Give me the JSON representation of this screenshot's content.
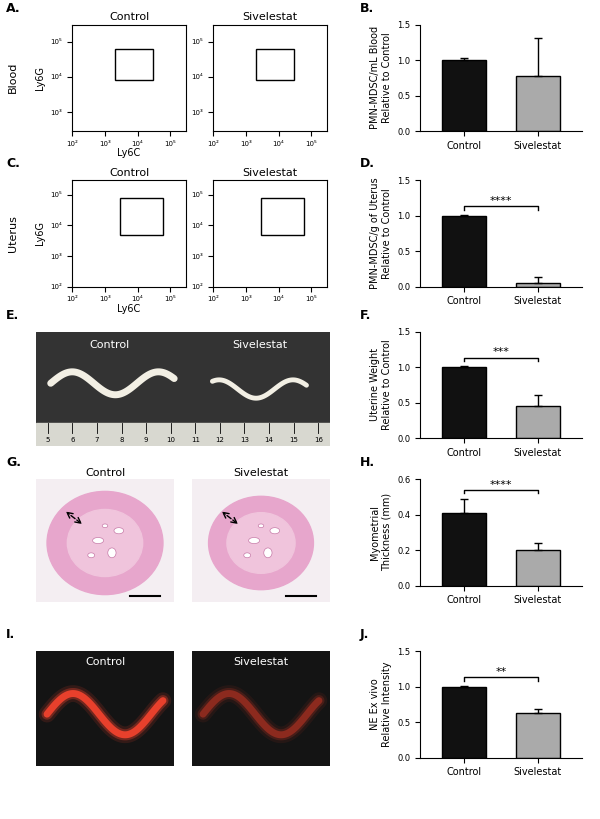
{
  "chart_data": [
    {
      "panel": "A.",
      "type": "flow_cytometry",
      "row_label": "Blood",
      "xlabel": "Ly6C",
      "ylabel": "Ly6G",
      "titles": [
        "Control",
        "Sivelestat"
      ],
      "log": true,
      "xlim": [
        100,
        300000
      ],
      "ylim": [
        300,
        300000
      ],
      "xticks": [
        {
          "value": 100,
          "label": "10²"
        },
        {
          "value": 1000,
          "label": "10³"
        },
        {
          "value": 10000,
          "label": "10⁴"
        },
        {
          "value": 100000,
          "label": "10⁵"
        }
      ],
      "yticks": [
        {
          "value": 1000,
          "label": "10³"
        },
        {
          "value": 10000,
          "label": "10⁴"
        },
        {
          "value": 100000,
          "label": "10⁵"
        }
      ],
      "gates": [
        {
          "x": [
            2000,
            30000
          ],
          "y": [
            8000,
            60000
          ]
        },
        {
          "x": [
            2000,
            30000
          ],
          "y": [
            8000,
            60000
          ]
        }
      ]
    },
    {
      "panel": "B.",
      "type": "bar",
      "ylabel": "PMN-MDSC/mL Blood\nRelative to Control",
      "categories": [
        "Control",
        "Sivelestat"
      ],
      "values": [
        1.0,
        0.78
      ],
      "errors": [
        0.03,
        0.53
      ],
      "colors": [
        "#111111",
        "#aaaaaa"
      ],
      "ylim": [
        0.0,
        1.5
      ],
      "yticks": [
        0.0,
        0.5,
        1.0,
        1.5
      ]
    },
    {
      "panel": "C.",
      "type": "flow_cytometry",
      "row_label": "Uterus",
      "xlabel": "Ly6C",
      "ylabel": "Ly6G",
      "titles": [
        "Control",
        "Sivelestat"
      ],
      "log": true,
      "xlim": [
        100,
        300000
      ],
      "ylim": [
        100,
        300000
      ],
      "xticks": [
        {
          "value": 100,
          "label": "10²"
        },
        {
          "value": 1000,
          "label": "10³"
        },
        {
          "value": 10000,
          "label": "10⁴"
        },
        {
          "value": 100000,
          "label": "10⁵"
        }
      ],
      "yticks": [
        {
          "value": 100,
          "label": "10²"
        },
        {
          "value": 1000,
          "label": "10³"
        },
        {
          "value": 10000,
          "label": "10⁴"
        },
        {
          "value": 100000,
          "label": "10⁵"
        }
      ],
      "gates": [
        {
          "x": [
            3000,
            60000
          ],
          "y": [
            5000,
            80000
          ]
        },
        {
          "x": [
            3000,
            60000
          ],
          "y": [
            5000,
            80000
          ]
        }
      ]
    },
    {
      "panel": "D.",
      "type": "bar",
      "ylabel": "PMN-MDSC/g of Uterus\nRelative to Control",
      "categories": [
        "Control",
        "Sivelestat"
      ],
      "values": [
        1.0,
        0.05
      ],
      "errors": [
        0.01,
        0.08
      ],
      "colors": [
        "#111111",
        "#aaaaaa"
      ],
      "ylim": [
        0.0,
        1.5
      ],
      "yticks": [
        0.0,
        0.5,
        1.0,
        1.5
      ],
      "significance": "****"
    },
    {
      "panel": "F.",
      "type": "bar",
      "ylabel": "Uterine Weight\nRelative to Control",
      "categories": [
        "Control",
        "Sivelestat"
      ],
      "values": [
        1.0,
        0.45
      ],
      "errors": [
        0.01,
        0.16
      ],
      "colors": [
        "#111111",
        "#aaaaaa"
      ],
      "ylim": [
        0.0,
        1.5
      ],
      "yticks": [
        0.0,
        0.5,
        1.0,
        1.5
      ],
      "significance": "***"
    },
    {
      "panel": "H.",
      "type": "bar",
      "ylabel": "Myometrial\nThickness (mm)",
      "categories": [
        "Control",
        "Sivelestat"
      ],
      "values": [
        0.41,
        0.2
      ],
      "errors": [
        0.08,
        0.04
      ],
      "colors": [
        "#111111",
        "#aaaaaa"
      ],
      "ylim": [
        0.0,
        0.6
      ],
      "yticks": [
        0.0,
        0.2,
        0.4,
        0.6
      ],
      "significance": "****"
    },
    {
      "panel": "J.",
      "type": "bar",
      "ylabel": "NE Ex vivo\nRelative Intensity",
      "categories": [
        "Control",
        "Sivelestat"
      ],
      "values": [
        1.0,
        0.63
      ],
      "errors": [
        0.01,
        0.06
      ],
      "colors": [
        "#111111",
        "#aaaaaa"
      ],
      "ylim": [
        0.0,
        1.5
      ],
      "yticks": [
        0.0,
        0.5,
        1.0,
        1.5
      ],
      "significance": "**"
    }
  ],
  "images": [
    {
      "panel": "E.",
      "type": "photo",
      "titles": [
        "Control",
        "Sivelestat"
      ],
      "ruler": [
        5,
        6,
        7,
        8,
        9,
        10,
        11,
        12,
        13,
        14,
        15,
        16
      ]
    },
    {
      "panel": "G.",
      "type": "histology",
      "titles": [
        "Control",
        "Sivelestat"
      ]
    },
    {
      "panel": "I.",
      "type": "fluorescence",
      "titles": [
        "Control",
        "Sivelestat"
      ]
    }
  ]
}
